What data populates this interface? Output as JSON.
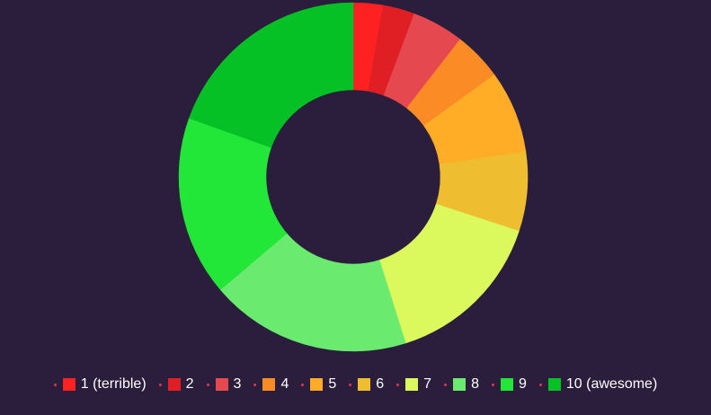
{
  "chart_data": {
    "type": "pie",
    "variant": "donut",
    "categories": [
      "1 (terrible)",
      "2",
      "3",
      "4",
      "5",
      "6",
      "7",
      "8",
      "9",
      "10 (awesome)"
    ],
    "values": [
      2.8,
      3.0,
      4.9,
      4.6,
      7.8,
      7.5,
      15.4,
      19.0,
      17.0,
      19.9
    ],
    "colors": [
      "#fe2121",
      "#e01f24",
      "#e5484e",
      "#fb8b24",
      "#ffac26",
      "#efbe30",
      "#dbf95d",
      "#6aeb70",
      "#22e638",
      "#06c126"
    ],
    "legend_position": "bottom",
    "legend_marker_color": "#e23a4c",
    "background": "#2a1e3c"
  }
}
